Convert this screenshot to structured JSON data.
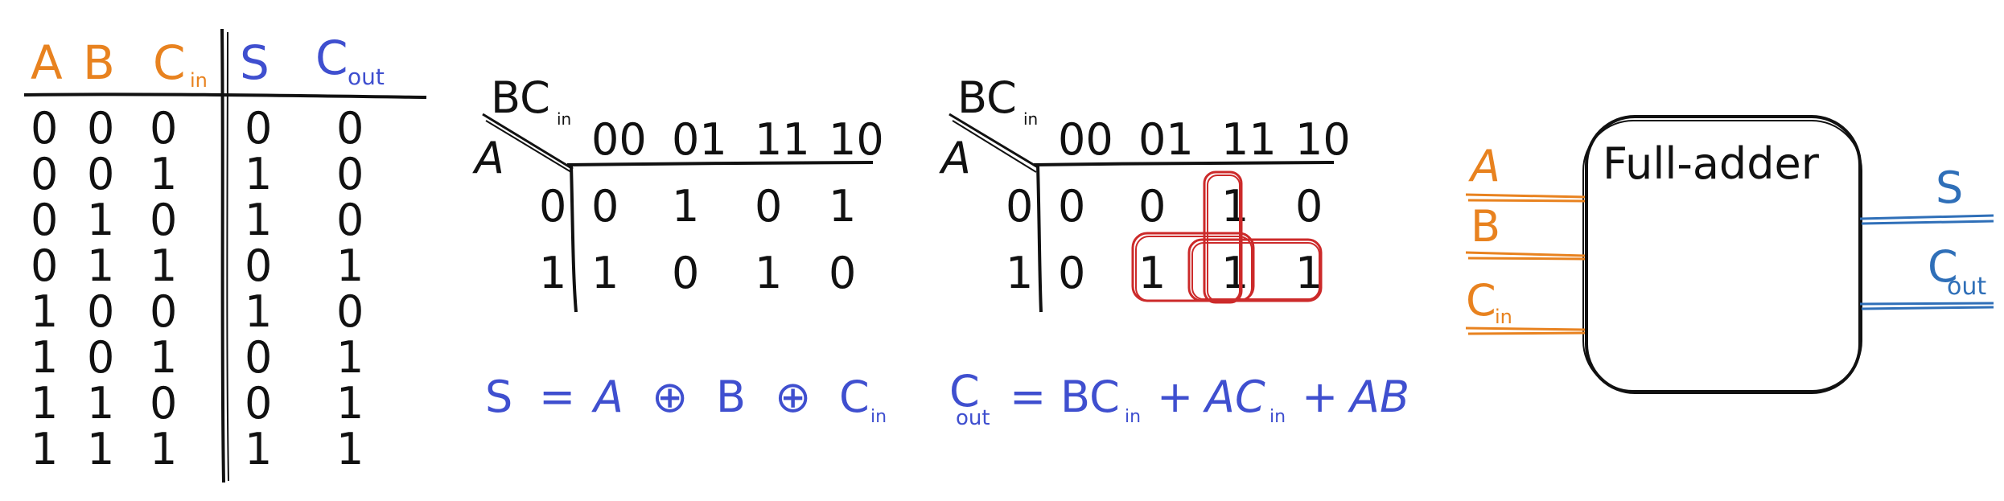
{
  "truth_table": {
    "headers": [
      {
        "main": "A",
        "sub": "",
        "color": "#e8821f"
      },
      {
        "main": "B",
        "sub": "",
        "color": "#e8821f"
      },
      {
        "main": "C",
        "sub": "in",
        "color": "#e8821f"
      },
      {
        "main": "S",
        "sub": "",
        "color": "#3f4fcf"
      },
      {
        "main": "C",
        "sub": "out",
        "color": "#3f4fcf"
      }
    ],
    "rows": [
      [
        "0",
        "0",
        "0",
        "0",
        "0"
      ],
      [
        "0",
        "0",
        "1",
        "1",
        "0"
      ],
      [
        "0",
        "1",
        "0",
        "1",
        "0"
      ],
      [
        "0",
        "1",
        "1",
        "0",
        "1"
      ],
      [
        "1",
        "0",
        "0",
        "1",
        "0"
      ],
      [
        "1",
        "0",
        "1",
        "0",
        "1"
      ],
      [
        "1",
        "1",
        "0",
        "0",
        "1"
      ],
      [
        "1",
        "1",
        "1",
        "1",
        "1"
      ]
    ]
  },
  "kmap_s": {
    "col_var": "BC",
    "col_var_sub": "in",
    "row_var": "A",
    "col_labels": [
      "00",
      "01",
      "11",
      "10"
    ],
    "row_labels": [
      "0",
      "1"
    ],
    "cells": [
      [
        "0",
        "1",
        "0",
        "1"
      ],
      [
        "1",
        "0",
        "1",
        "0"
      ]
    ]
  },
  "kmap_cout": {
    "col_var": "BC",
    "col_var_sub": "in",
    "row_var": "A",
    "col_labels": [
      "00",
      "01",
      "11",
      "10"
    ],
    "row_labels": [
      "0",
      "1"
    ],
    "cells": [
      [
        "0",
        "0",
        "1",
        "0"
      ],
      [
        "0",
        "1",
        "1",
        "1"
      ]
    ],
    "group_color": "#cc2a2a"
  },
  "equations": {
    "s_eq": {
      "lhs": "S",
      "eq": "=",
      "t1": "A",
      "op1": "⊕",
      "t2": "B",
      "op2": "⊕",
      "t3": "C",
      "t3_sub": "in"
    },
    "cout_eq": {
      "lhs": "C",
      "lhs_sub": "out",
      "eq": "=",
      "t1": "BC",
      "t1_sub": "in",
      "plus1": "+",
      "t2": "AC",
      "t2_sub": "in",
      "plus2": "+",
      "t3": "AB"
    },
    "color": "#3f4fcf"
  },
  "block": {
    "title": "Full-adder",
    "inputs": [
      {
        "main": "A",
        "sub": ""
      },
      {
        "main": "B",
        "sub": ""
      },
      {
        "main": "C",
        "sub": "in"
      }
    ],
    "outputs": [
      {
        "main": "S",
        "sub": ""
      },
      {
        "main": "C",
        "sub": "out"
      }
    ],
    "input_color": "#e8821f",
    "output_color": "#2f6fb8"
  }
}
